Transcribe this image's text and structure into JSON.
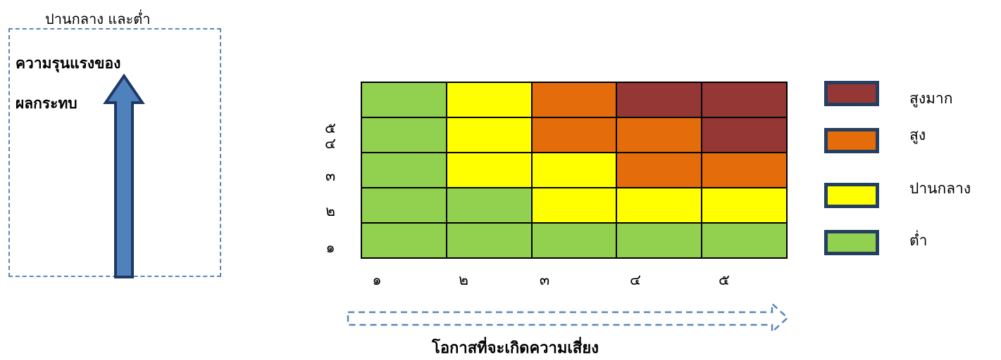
{
  "top_text": "ปานกลาง  และต่ำ",
  "y_axis_label_lines": [
    "ความรุนแรงของ",
    "ผลกระทบ"
  ],
  "x_axis_label": "โอกาสที่จะเกิดความเสี่ยง",
  "colors": {
    "very_high": "#953735",
    "high": "#e46c0a",
    "medium": "#ffff00",
    "low": "#92d050",
    "arrow_fill": "#4f81bd",
    "arrow_stroke": "#1f3864",
    "dash": "#5a86b8",
    "legend_border": "#243f60"
  },
  "legend": [
    {
      "label": "สูงมาก",
      "level": "very_high"
    },
    {
      "label": "สูง",
      "level": "high"
    },
    {
      "label": "ปานกลาง",
      "level": "medium"
    },
    {
      "label": "ต่ำ",
      "level": "low"
    }
  ],
  "chart_data": {
    "type": "heatmap",
    "title": "",
    "xlabel": "โอกาสที่จะเกิดความเสี่ยง",
    "ylabel": "ความรุนแรงของผลกระทบ",
    "x_ticks": [
      "๑",
      "๒",
      "๓",
      "๔",
      "๕"
    ],
    "y_ticks_top_to_bottom": [
      "๕",
      "๔",
      "๓",
      "๒",
      "๑"
    ],
    "grid_top_to_bottom": [
      [
        "low",
        "medium",
        "high",
        "very_high",
        "very_high"
      ],
      [
        "low",
        "medium",
        "high",
        "high",
        "very_high"
      ],
      [
        "low",
        "medium",
        "medium",
        "high",
        "high"
      ],
      [
        "low",
        "low",
        "medium",
        "medium",
        "medium"
      ],
      [
        "low",
        "low",
        "low",
        "low",
        "low"
      ]
    ],
    "legend_position": "right"
  }
}
